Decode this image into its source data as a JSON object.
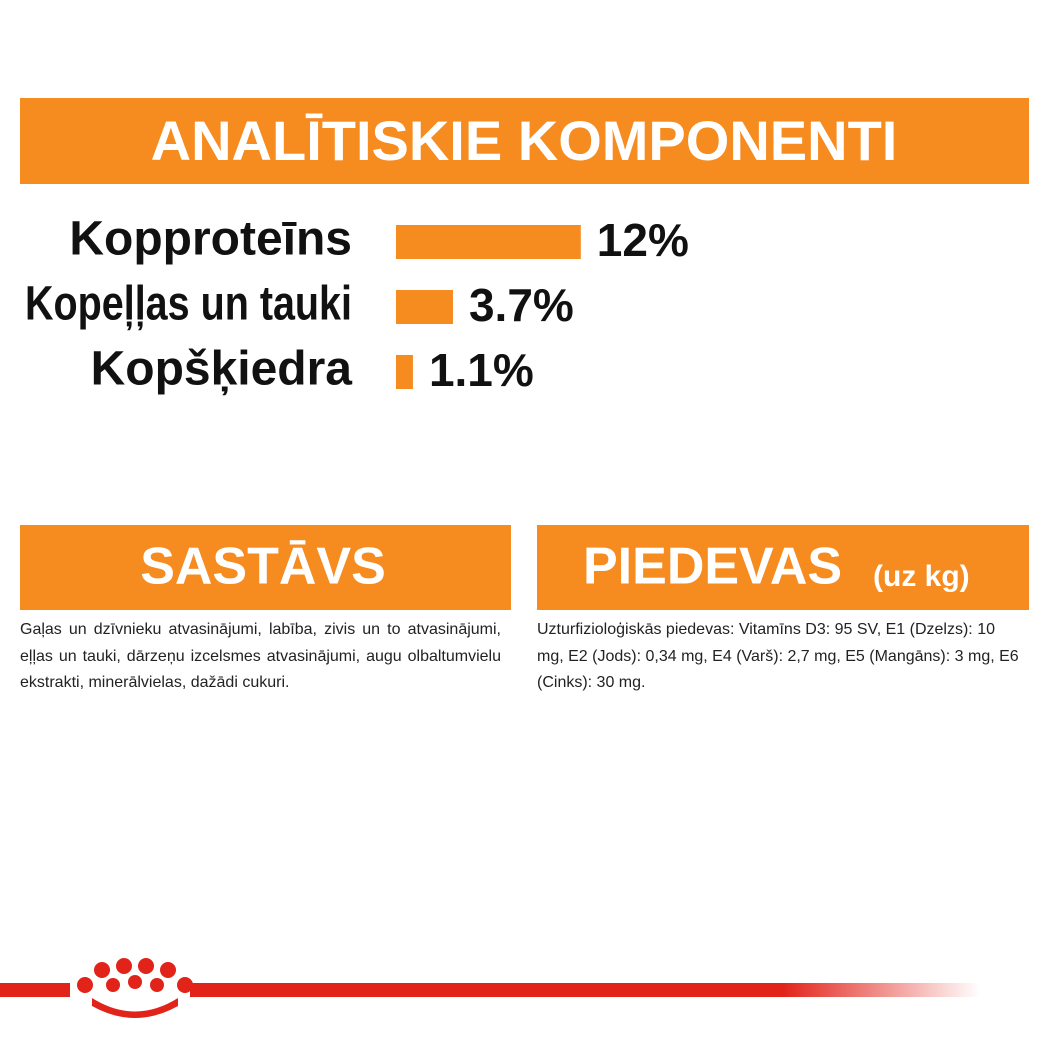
{
  "title": "ANALĪTISKIE KOMPONENTI",
  "chart_data": {
    "type": "bar",
    "orientation": "horizontal",
    "color": "#f68b1f",
    "categories": [
      "Kopproteīns",
      "Kopeļļas un tauki",
      "Kopšķiedra"
    ],
    "values": [
      12,
      3.7,
      1.1
    ],
    "value_labels": [
      "12%",
      "3.7%",
      "1.1%"
    ]
  },
  "composition": {
    "title": "SASTĀVS",
    "text": "Gaļas un dzīvnieku atvasinājumi, labība, zivis un to atvasinājumi, eļļas un tauki, dārzeņu izcelsmes atvasinājumi, augu olbaltumvielu ekstrakti, minerālvielas, dažādi cukuri."
  },
  "additives": {
    "title": "PIEDEVAS",
    "unit": "(uz kg)",
    "text": "Uzturfizioloģiskās piedevas: Vitamīns D3: 95 SV, E1 (Dzelzs): 10 mg, E2 (Jods): 0,34 mg, E4 (Varš): 2,7 mg, E5 (Mangāns): 3 mg, E6 (Cinks): 30 mg."
  }
}
